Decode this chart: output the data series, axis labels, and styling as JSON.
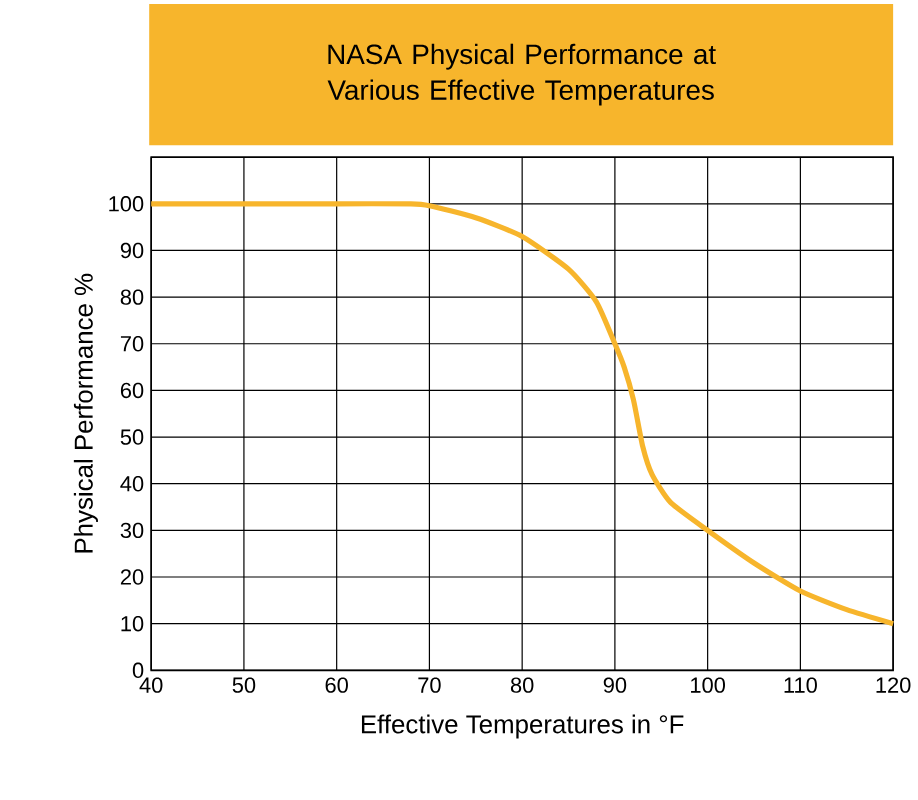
{
  "chart_data": {
    "type": "line",
    "title": "NASA Physical Performance at Various Effective Temperatures",
    "xlabel": "Effective Temperatures in °F",
    "ylabel": "Physical Performance %",
    "x": [
      40,
      50,
      60,
      68,
      70,
      75,
      80,
      85,
      88,
      90,
      91,
      92,
      93,
      94,
      96,
      100,
      105,
      110,
      115,
      120
    ],
    "series": [
      {
        "color": "#f7b52c",
        "values": [
          100,
          100,
          100,
          100,
          99.6,
          97,
          93,
          86,
          79,
          70,
          65,
          58,
          48,
          42,
          36,
          30,
          23,
          17,
          13,
          10
        ]
      }
    ],
    "xlim": [
      40,
      120
    ],
    "ylim": [
      0,
      110
    ],
    "xticks": [
      40,
      50,
      60,
      70,
      80,
      90,
      100,
      110,
      120
    ],
    "yticks": [
      0,
      10,
      20,
      30,
      40,
      50,
      60,
      70,
      80,
      90,
      100
    ],
    "grid": true,
    "marker": "none",
    "line_style": "solid"
  }
}
